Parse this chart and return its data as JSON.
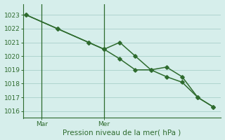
{
  "line1": {
    "x": [
      0,
      2,
      4,
      5,
      6,
      7,
      8,
      9,
      10,
      11,
      12
    ],
    "y": [
      1023.0,
      1022.0,
      1021.0,
      1020.5,
      1021.0,
      1020.0,
      1019.0,
      1019.2,
      1018.5,
      1017.0,
      1016.3
    ]
  },
  "line2": {
    "x": [
      0,
      2,
      4,
      5,
      6,
      7,
      8,
      9,
      10,
      11,
      12
    ],
    "y": [
      1023.0,
      1022.0,
      1021.0,
      1020.5,
      1019.8,
      1019.0,
      1019.0,
      1018.5,
      1018.1,
      1017.0,
      1016.3
    ]
  },
  "color": "#2e6b2e",
  "bg_color": "#d6eeeb",
  "grid_color": "#aed4cf",
  "axis_color": "#2e6b2e",
  "ylabel": "Pression niveau de la mer( hPa )",
  "yticks": [
    1016,
    1017,
    1018,
    1019,
    1020,
    1021,
    1022,
    1023
  ],
  "ylim": [
    1015.5,
    1023.8
  ],
  "xlim": [
    -0.2,
    12.5
  ],
  "xtick_positions": [
    1,
    5
  ],
  "xtick_labels": [
    "Mar",
    "Mer"
  ],
  "vlines": [
    1,
    5
  ],
  "marker": "D",
  "markersize": 2.8,
  "linewidth": 1.1,
  "label_fontsize": 7.5,
  "tick_fontsize": 6.5
}
